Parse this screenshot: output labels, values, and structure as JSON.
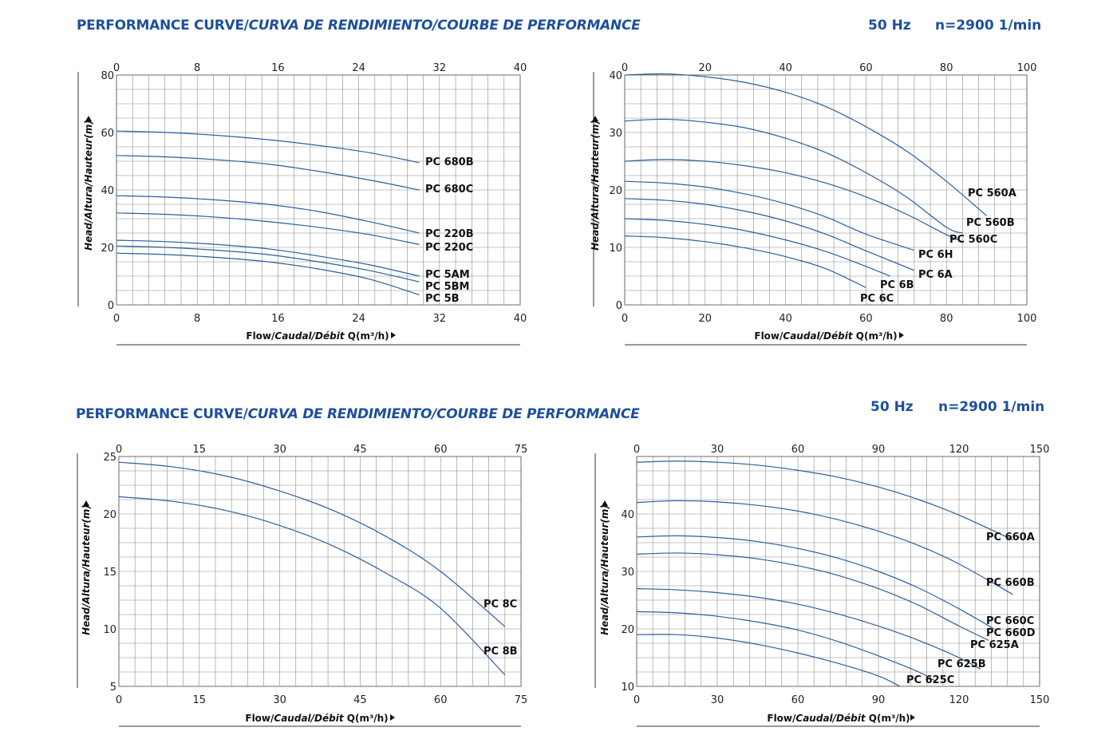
{
  "headers": [
    {
      "title_main": "PERFORMANCE CURVE/",
      "title_italic": "CURVA DE RENDIMIENTO/COURBE DE PERFORMANCE",
      "freq": "50 Hz",
      "speed": "n=2900 1/min"
    },
    {
      "title_main": "PERFORMANCE CURVE/",
      "title_italic": "CURVA DE RENDIMIENTO/COURBE DE PERFORMANCE",
      "freq": "50 Hz",
      "speed": "n=2900 1/min"
    }
  ],
  "chart_data": [
    {
      "type": "line",
      "ylabel": "Head/Altura/Hauteur(m)",
      "xlabel_main": "Flow/",
      "xlabel_italic": "Caudal/Débit",
      "xlabel_tail": " Q(m³/h)",
      "xlim": [
        0,
        40
      ],
      "ylim": [
        0,
        80
      ],
      "xticks": [
        0,
        8,
        16,
        24,
        32,
        40
      ],
      "yticks": [
        0,
        20,
        40,
        60,
        80
      ],
      "grid": true,
      "series": [
        {
          "name": "PC 680B",
          "x": [
            0,
            5,
            10,
            15,
            20,
            25,
            30
          ],
          "y": [
            60.5,
            60,
            59,
            57.5,
            55.5,
            53,
            49.5
          ]
        },
        {
          "name": "PC 680C",
          "x": [
            0,
            5,
            10,
            15,
            20,
            25,
            30
          ],
          "y": [
            52,
            51.5,
            50.5,
            49,
            46.5,
            43.5,
            40
          ]
        },
        {
          "name": "PC 220B",
          "x": [
            0,
            5,
            10,
            15,
            20,
            25,
            30
          ],
          "y": [
            38,
            37.5,
            36.5,
            35,
            32.5,
            29,
            25
          ]
        },
        {
          "name": "PC 220C",
          "x": [
            0,
            5,
            10,
            15,
            20,
            25,
            30
          ],
          "y": [
            32,
            31.5,
            30.5,
            29,
            27,
            24.5,
            21
          ]
        },
        {
          "name": "PC 5AM",
          "x": [
            0,
            5,
            10,
            15,
            20,
            25,
            30
          ],
          "y": [
            22.5,
            22,
            21,
            19.5,
            17,
            14,
            10
          ]
        },
        {
          "name": "PC 5BM",
          "x": [
            0,
            5,
            10,
            15,
            20,
            25,
            30
          ],
          "y": [
            20.5,
            20,
            19,
            17.5,
            15,
            12,
            8
          ]
        },
        {
          "name": "PC 5B",
          "x": [
            0,
            5,
            10,
            15,
            20,
            25,
            30
          ],
          "y": [
            18,
            17.5,
            16.5,
            15,
            12.5,
            9,
            3.5
          ]
        }
      ]
    },
    {
      "type": "line",
      "ylabel": "Head/Altura/Hauteur(m)",
      "xlabel_main": "Flow/",
      "xlabel_italic": "Caudal/Débit",
      "xlabel_tail": " Q(m³/h)",
      "xlim": [
        0,
        100
      ],
      "ylim": [
        0,
        40
      ],
      "xticks": [
        0,
        20,
        40,
        60,
        80,
        100
      ],
      "yticks": [
        0,
        10,
        20,
        30,
        40
      ],
      "grid": true,
      "series": [
        {
          "name": "PC 560A",
          "x": [
            0,
            10,
            20,
            30,
            40,
            50,
            60,
            70,
            80,
            90
          ],
          "y": [
            40,
            40.2,
            39.7,
            38.7,
            37,
            34.5,
            31,
            26.8,
            21.5,
            15.5
          ]
        },
        {
          "name": "PC 560B",
          "x": [
            0,
            10,
            20,
            30,
            40,
            50,
            60,
            70,
            80,
            84
          ],
          "y": [
            32,
            32.3,
            31.8,
            30.8,
            29,
            26.5,
            23,
            18.8,
            13.5,
            12.5
          ]
        },
        {
          "name": "PC 560C",
          "x": [
            0,
            10,
            20,
            30,
            40,
            50,
            60,
            70,
            80,
            84
          ],
          "y": [
            25,
            25.3,
            25,
            24.2,
            23,
            21.2,
            18.8,
            15.8,
            12.2,
            11
          ]
        },
        {
          "name": "PC 6H",
          "x": [
            0,
            10,
            20,
            30,
            40,
            50,
            60,
            72
          ],
          "y": [
            21.5,
            21.2,
            20.5,
            19.3,
            17.6,
            15.3,
            12.3,
            9.5
          ]
        },
        {
          "name": "PC 6A",
          "x": [
            0,
            10,
            20,
            30,
            40,
            50,
            60,
            72
          ],
          "y": [
            18.5,
            18.2,
            17.5,
            16.3,
            14.6,
            12.3,
            9.4,
            6
          ]
        },
        {
          "name": "PC 6B",
          "x": [
            0,
            10,
            20,
            30,
            40,
            50,
            60,
            66
          ],
          "y": [
            15,
            14.7,
            14,
            12.9,
            11.3,
            9.3,
            6.7,
            5
          ]
        },
        {
          "name": "PC 6C",
          "x": [
            0,
            10,
            20,
            30,
            40,
            50,
            60
          ],
          "y": [
            12,
            11.7,
            11,
            9.9,
            8.4,
            6.3,
            3
          ]
        }
      ]
    },
    {
      "type": "line",
      "ylabel": "Head/Altura/Hauteur(m)",
      "xlabel_main": "Flow/",
      "xlabel_italic": "Caudal/Débit",
      "xlabel_tail": " Q(m³/h)",
      "xlim": [
        0,
        75
      ],
      "ylim": [
        5,
        25
      ],
      "xticks": [
        0,
        15,
        30,
        45,
        60,
        75
      ],
      "yticks": [
        5,
        10,
        15,
        20,
        25
      ],
      "grid": true,
      "series": [
        {
          "name": "PC 8C",
          "x": [
            0,
            10,
            20,
            30,
            40,
            50,
            60,
            72
          ],
          "y": [
            24.5,
            24.1,
            23.3,
            22,
            20.3,
            18,
            15,
            10.2
          ]
        },
        {
          "name": "PC 8B",
          "x": [
            0,
            10,
            20,
            30,
            40,
            50,
            60,
            72
          ],
          "y": [
            21.5,
            21.1,
            20.3,
            19,
            17.2,
            14.8,
            11.8,
            6
          ]
        }
      ]
    },
    {
      "type": "line",
      "ylabel": "Head/Altura/Hauteur(m)",
      "xlabel_main": "Flow/",
      "xlabel_italic": "Caudal/Débit",
      "xlabel_tail": " Q(m³/h)",
      "xlim": [
        0,
        150
      ],
      "ylim": [
        10,
        50
      ],
      "xticks": [
        0,
        30,
        60,
        90,
        120,
        150
      ],
      "yticks": [
        10,
        20,
        30,
        40
      ],
      "grid": true,
      "series": [
        {
          "name": "PC 660A",
          "x": [
            0,
            15,
            30,
            45,
            60,
            75,
            90,
            105,
            120,
            140
          ],
          "y": [
            49,
            49.2,
            49,
            48.5,
            47.6,
            46.4,
            44.7,
            42.5,
            39.8,
            35.5
          ]
        },
        {
          "name": "PC 660B",
          "x": [
            0,
            15,
            30,
            45,
            60,
            75,
            90,
            105,
            120,
            140
          ],
          "y": [
            42,
            42.3,
            42.1,
            41.5,
            40.5,
            39,
            37,
            34.5,
            31.3,
            26
          ]
        },
        {
          "name": "PC 660C",
          "x": [
            0,
            15,
            30,
            45,
            60,
            75,
            90,
            105,
            120,
            133
          ],
          "y": [
            36,
            36.2,
            35.9,
            35.2,
            34,
            32.3,
            30,
            27.1,
            23.5,
            20
          ]
        },
        {
          "name": "PC 660D",
          "x": [
            0,
            15,
            30,
            45,
            60,
            75,
            90,
            105,
            120,
            131
          ],
          "y": [
            33,
            33.2,
            32.9,
            32.2,
            31,
            29.3,
            27,
            24.1,
            20.5,
            18
          ]
        },
        {
          "name": "PC 625A",
          "x": [
            0,
            15,
            30,
            45,
            60,
            75,
            90,
            105,
            120,
            128
          ],
          "y": [
            27,
            26.8,
            26.3,
            25.5,
            24.3,
            22.6,
            20.5,
            18,
            15,
            13
          ]
        },
        {
          "name": "PC 625B",
          "x": [
            0,
            15,
            30,
            45,
            60,
            75,
            90,
            105,
            111
          ],
          "y": [
            23,
            22.8,
            22.2,
            21.2,
            19.8,
            17.8,
            15.3,
            12.5,
            11
          ]
        },
        {
          "name": "PC 625C",
          "x": [
            0,
            15,
            30,
            45,
            60,
            75,
            90,
            98
          ],
          "y": [
            19,
            19,
            18.4,
            17.3,
            15.8,
            14,
            11.8,
            10
          ]
        }
      ]
    }
  ]
}
